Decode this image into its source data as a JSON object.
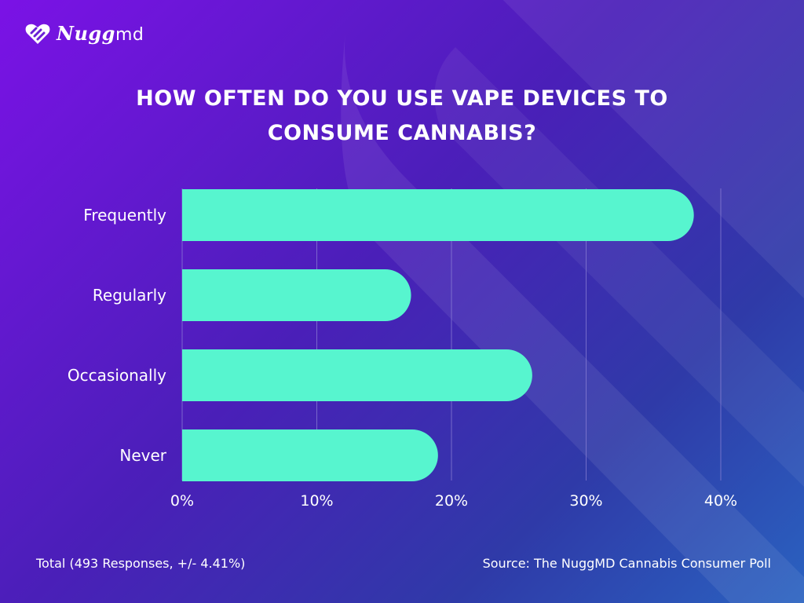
{
  "brand": {
    "name": "Nugg",
    "suffix": "md"
  },
  "colors": {
    "bar": "#57f5cf",
    "grid": "#8f83d6",
    "text": "#ffffff"
  },
  "footer": {
    "total": "Total (493 Responses, +/- 4.41%)",
    "source": "Source: The NuggMD Cannabis Consumer Poll"
  },
  "chart_data": {
    "type": "bar",
    "orientation": "horizontal",
    "title_lines": [
      "HOW OFTEN DO YOU USE VAPE DEVICES TO",
      "CONSUME CANNABIS?"
    ],
    "categories": [
      "Frequently",
      "Regularly",
      "Occasionally",
      "Never"
    ],
    "values": [
      38,
      17,
      26,
      19
    ],
    "xlim": [
      0,
      40
    ],
    "xticks": [
      0,
      10,
      20,
      30,
      40
    ],
    "tick_labels": [
      "0%",
      "10%",
      "20%",
      "30%",
      "40%"
    ],
    "grid": true
  }
}
